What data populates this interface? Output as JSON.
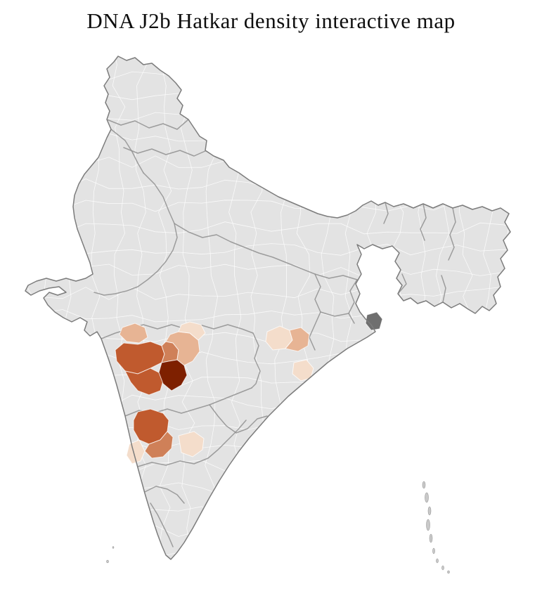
{
  "title": "DNA J2b Hatkar density interactive map",
  "map": {
    "country": "India",
    "background": "#ffffff",
    "base_fill": "#e3e3e3",
    "district_line": "#ffffff",
    "state_line": "#8f8f8f",
    "outline": "#7c7c7c",
    "island_fill": "#c9c9c9",
    "density_scale": {
      "highest": "#7e2000",
      "high": "#c05a2e",
      "medium": "#cf8058",
      "low": "#e7b494",
      "lowest": "#f4ddcb",
      "marked_gray": "#6f6f6f"
    }
  }
}
